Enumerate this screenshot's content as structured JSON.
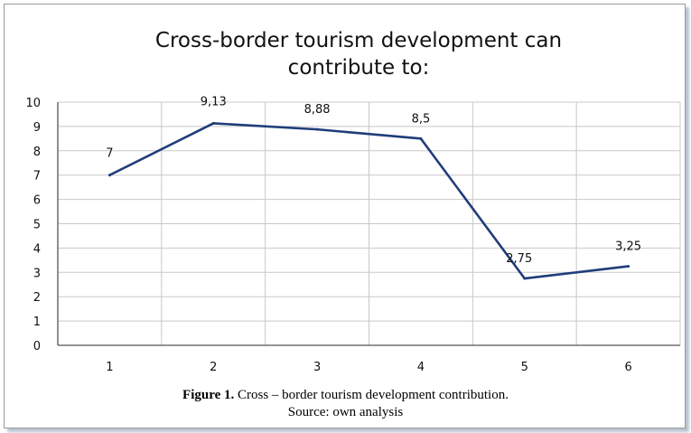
{
  "caption": {
    "figure_label": "Figure 1.",
    "figure_text": " Cross – border tourism development contribution.",
    "source": "Source: own analysis"
  },
  "chart_data": {
    "type": "line",
    "title": "Cross-border tourism development can contribute to:",
    "title_lines": [
      "Cross-border tourism development can",
      "contribute to:"
    ],
    "x": [
      1,
      2,
      3,
      4,
      5,
      6
    ],
    "x_tick_labels": [
      "1",
      "2",
      "3",
      "4",
      "5",
      "6"
    ],
    "values": [
      7,
      9.13,
      8.88,
      8.5,
      2.75,
      3.25
    ],
    "data_labels": [
      "7",
      "9,13",
      "8,88",
      "8,5",
      "2,75",
      "3,25"
    ],
    "y_tick_labels": [
      "0",
      "1",
      "2",
      "3",
      "4",
      "5",
      "6",
      "7",
      "8",
      "9",
      "10"
    ],
    "ylim": [
      0,
      10
    ],
    "xlabel": "",
    "ylabel": "",
    "grid": true,
    "legend": "none",
    "line_color": "#1f3d7a",
    "grid_color": "#c8c8c8"
  }
}
